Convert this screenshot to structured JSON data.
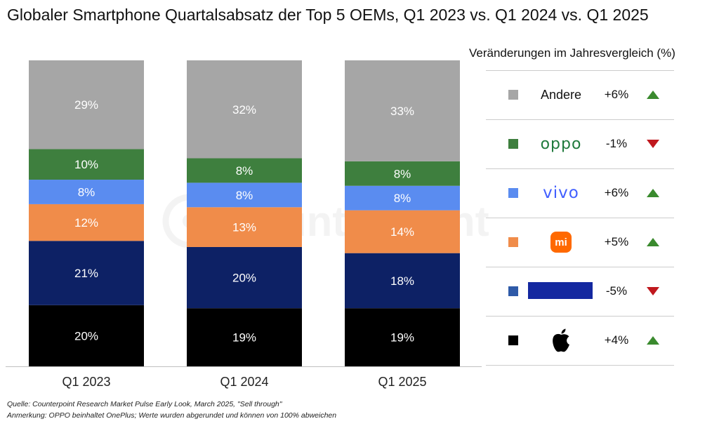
{
  "title": "Globaler Smartphone Quartalsabsatz der Top 5 OEMs, Q1 2023 vs. Q1 2024 vs. Q1 2025",
  "watermark": "Counterpoint",
  "legend": {
    "title": "Veränderungen im Jahresvergleich (%)",
    "items": [
      {
        "brand": "Andere",
        "brand_style": "text",
        "color": "#a6a6a6",
        "change": "+6%",
        "direction": "up"
      },
      {
        "brand": "oppo",
        "brand_style": "oppo-logo",
        "color": "#3e7f3e",
        "change": "-1%",
        "direction": "down"
      },
      {
        "brand": "vivo",
        "brand_style": "vivo-logo",
        "color": "#5a8cf0",
        "change": "+6%",
        "direction": "up"
      },
      {
        "brand": "mi",
        "brand_style": "xiaomi-logo",
        "color": "#f08c4a",
        "change": "+5%",
        "direction": "up"
      },
      {
        "brand": "",
        "brand_style": "samsung-bar",
        "color": "#2e5aa8",
        "change": "-5%",
        "direction": "down"
      },
      {
        "brand": "",
        "brand_style": "apple-logo",
        "color": "#000000",
        "change": "+4%",
        "direction": "up"
      }
    ]
  },
  "colors": {
    "up": "#3a8a2e",
    "down": "#c0181e",
    "samsung_bar": "#1428a0",
    "xiaomi": "#ff6900",
    "oppo_text": "#1f7a3c",
    "vivo_text": "#415fff"
  },
  "chart_data": {
    "type": "bar",
    "stacked": true,
    "categories": [
      "Q1 2023",
      "Q1 2024",
      "Q1 2025"
    ],
    "ylim": [
      0,
      100
    ],
    "series": [
      {
        "color": "#000000",
        "values": [
          20,
          19,
          19
        ]
      },
      {
        "color": "#0d2165",
        "values": [
          21,
          20,
          18
        ]
      },
      {
        "color": "#f08c4a",
        "values": [
          12,
          13,
          14
        ]
      },
      {
        "color": "#5a8cf0",
        "values": [
          8,
          8,
          8
        ]
      },
      {
        "color": "#3e7f3e",
        "values": [
          10,
          8,
          8
        ]
      },
      {
        "color": "#a6a6a6",
        "values": [
          29,
          32,
          33
        ]
      }
    ]
  },
  "footer": {
    "source": "Quelle: Counterpoint Research Market Pulse Early Look, March 2025, \"Sell through\"",
    "note": "Anmerkung: OPPO beinhaltet OnePlus; Werte wurden abgerundet und können von 100% abweichen"
  }
}
